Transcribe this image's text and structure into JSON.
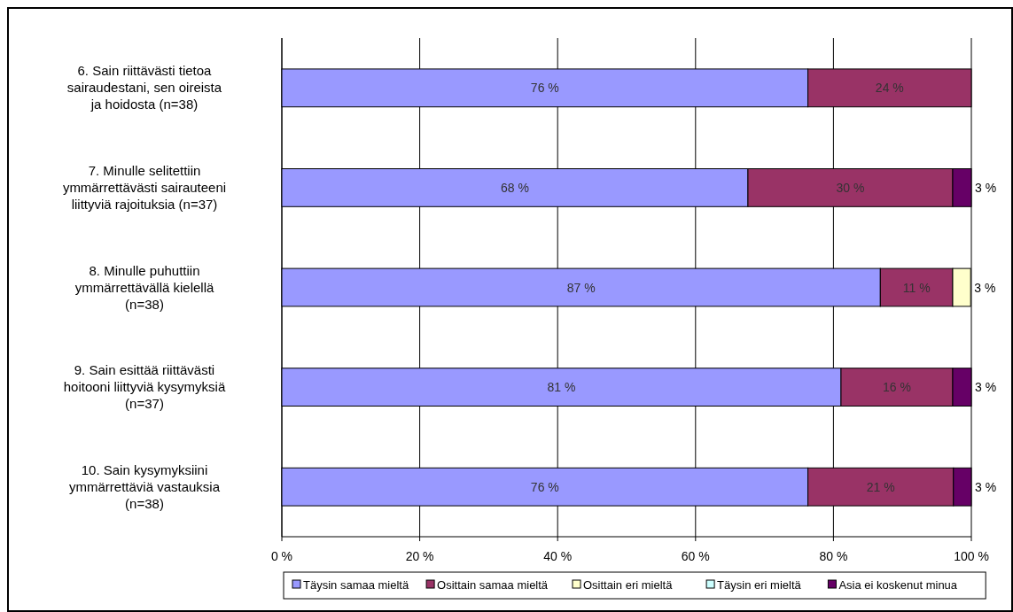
{
  "chart_data": {
    "type": "bar",
    "orientation": "horizontal",
    "stacked": true,
    "categories": [
      "6. Sain riittävästi tietoa sairaudestani, sen oireista ja hoidosta (n=38)",
      "7. Minulle selitettiin ymmärrettävästi sairauteeni liittyviä rajoituksia (n=37)",
      "8. Minulle puhuttiin ymmärrettävällä kielellä (n=38)",
      "9. Sain esittää riittävästi hoitooni liittyviä kysymyksiä (n=37)",
      "10. Sain kysymyksiini ymmärrettäviä vastauksia (n=38)"
    ],
    "series": [
      {
        "name": "Täysin samaa mieltä",
        "color": "#9999ff",
        "values": [
          76.3,
          67.6,
          86.8,
          81.1,
          76.3
        ],
        "value_labels": [
          "76 %",
          "68 %",
          "87 %",
          "81 %",
          "76 %"
        ]
      },
      {
        "name": "Osittain samaa mieltä",
        "color": "#993366",
        "values": [
          23.7,
          29.7,
          10.5,
          16.2,
          21.1
        ],
        "value_labels": [
          "24 %",
          "30 %",
          "11 %",
          "16 %",
          "21 %"
        ]
      },
      {
        "name": "Osittain eri mieltä",
        "color": "#ffffcc",
        "values": [
          0,
          0,
          2.6,
          0,
          0
        ],
        "value_labels": [
          null,
          null,
          "3 %",
          null,
          null
        ]
      },
      {
        "name": "Täysin eri mieltä",
        "color": "#ccffff",
        "values": [
          0,
          0,
          0,
          0,
          0
        ],
        "value_labels": [
          null,
          null,
          null,
          null,
          null
        ]
      },
      {
        "name": "Asia ei koskenut minua",
        "color": "#660066",
        "values": [
          0,
          2.7,
          0,
          2.7,
          2.6
        ],
        "value_labels": [
          null,
          "3 %",
          null,
          "3 %",
          "3 %"
        ]
      }
    ],
    "xlim": [
      0,
      100
    ],
    "xticks": [
      {
        "value": 0,
        "label": "0 %"
      },
      {
        "value": 20,
        "label": "20 %"
      },
      {
        "value": 40,
        "label": "40 %"
      },
      {
        "value": 60,
        "label": "60 %"
      },
      {
        "value": 80,
        "label": "80 %"
      },
      {
        "value": 100,
        "label": "100 %"
      }
    ],
    "grid": "x",
    "legend": "bottom"
  }
}
